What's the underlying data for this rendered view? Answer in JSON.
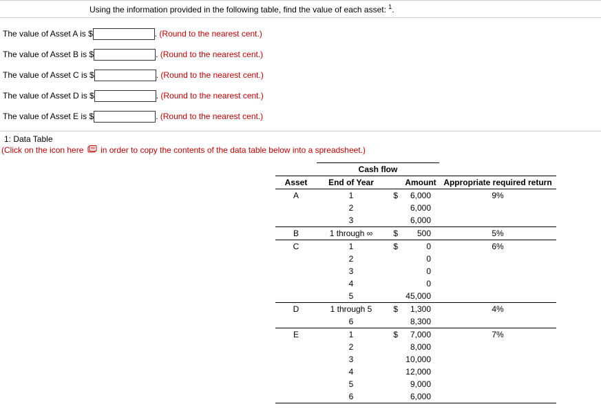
{
  "instruction": "Using the information provided in the following table, find the value of each asset:",
  "footnote_marker": "1",
  "assets_input": [
    {
      "label_pre": "The value of Asset A is $",
      "note": "(Round to the nearest cent.)"
    },
    {
      "label_pre": "The value of Asset B is $",
      "note": "(Round to the nearest cent.)"
    },
    {
      "label_pre": "The value of Asset C is $",
      "note": "(Round to the nearest cent.)"
    },
    {
      "label_pre": "The value of Asset D is $",
      "note": "(Round to the nearest cent.)"
    },
    {
      "label_pre": "The value of Asset E is $",
      "note": "(Round to the nearest cent.)"
    }
  ],
  "section_title": "1: Data Table",
  "copy_note_pre": "(Click on the icon here",
  "copy_note_post": "in order to copy the contents of the data table below into a spreadsheet.)",
  "table": {
    "super_header": "Cash flow",
    "headers": {
      "asset": "Asset",
      "eoy": "End of Year",
      "amount": "Amount",
      "ret": "Appropriate required return"
    },
    "rows": [
      {
        "asset": "A",
        "eoy": "1",
        "cur": "$",
        "amt": "6,000",
        "ret": "9%",
        "grp_top": true
      },
      {
        "asset": "",
        "eoy": "2",
        "cur": "",
        "amt": "6,000",
        "ret": ""
      },
      {
        "asset": "",
        "eoy": "3",
        "cur": "",
        "amt": "6,000",
        "ret": ""
      },
      {
        "asset": "B",
        "eoy": "1 through ∞",
        "cur": "$",
        "amt": "500",
        "ret": "5%",
        "grp_top": true
      },
      {
        "asset": "C",
        "eoy": "1",
        "cur": "$",
        "amt": "0",
        "ret": "6%",
        "grp_top": true
      },
      {
        "asset": "",
        "eoy": "2",
        "cur": "",
        "amt": "0",
        "ret": ""
      },
      {
        "asset": "",
        "eoy": "3",
        "cur": "",
        "amt": "0",
        "ret": ""
      },
      {
        "asset": "",
        "eoy": "4",
        "cur": "",
        "amt": "0",
        "ret": ""
      },
      {
        "asset": "",
        "eoy": "5",
        "cur": "",
        "amt": "45,000",
        "ret": ""
      },
      {
        "asset": "D",
        "eoy": "1 through 5",
        "cur": "$",
        "amt": "1,300",
        "ret": "4%",
        "grp_top": true
      },
      {
        "asset": "",
        "eoy": "6",
        "cur": "",
        "amt": "8,300",
        "ret": ""
      },
      {
        "asset": "E",
        "eoy": "1",
        "cur": "$",
        "amt": "7,000",
        "ret": "7%",
        "grp_top": true
      },
      {
        "asset": "",
        "eoy": "2",
        "cur": "",
        "amt": "8,000",
        "ret": ""
      },
      {
        "asset": "",
        "eoy": "3",
        "cur": "",
        "amt": "10,000",
        "ret": ""
      },
      {
        "asset": "",
        "eoy": "4",
        "cur": "",
        "amt": "12,000",
        "ret": ""
      },
      {
        "asset": "",
        "eoy": "5",
        "cur": "",
        "amt": "9,000",
        "ret": ""
      },
      {
        "asset": "",
        "eoy": "6",
        "cur": "",
        "amt": "6,000",
        "ret": "",
        "tbl_bot": true
      }
    ]
  },
  "colors": {
    "accent": "#c00000",
    "rule": "#d0d0d0",
    "text": "#000000",
    "bg": "#ffffff"
  }
}
